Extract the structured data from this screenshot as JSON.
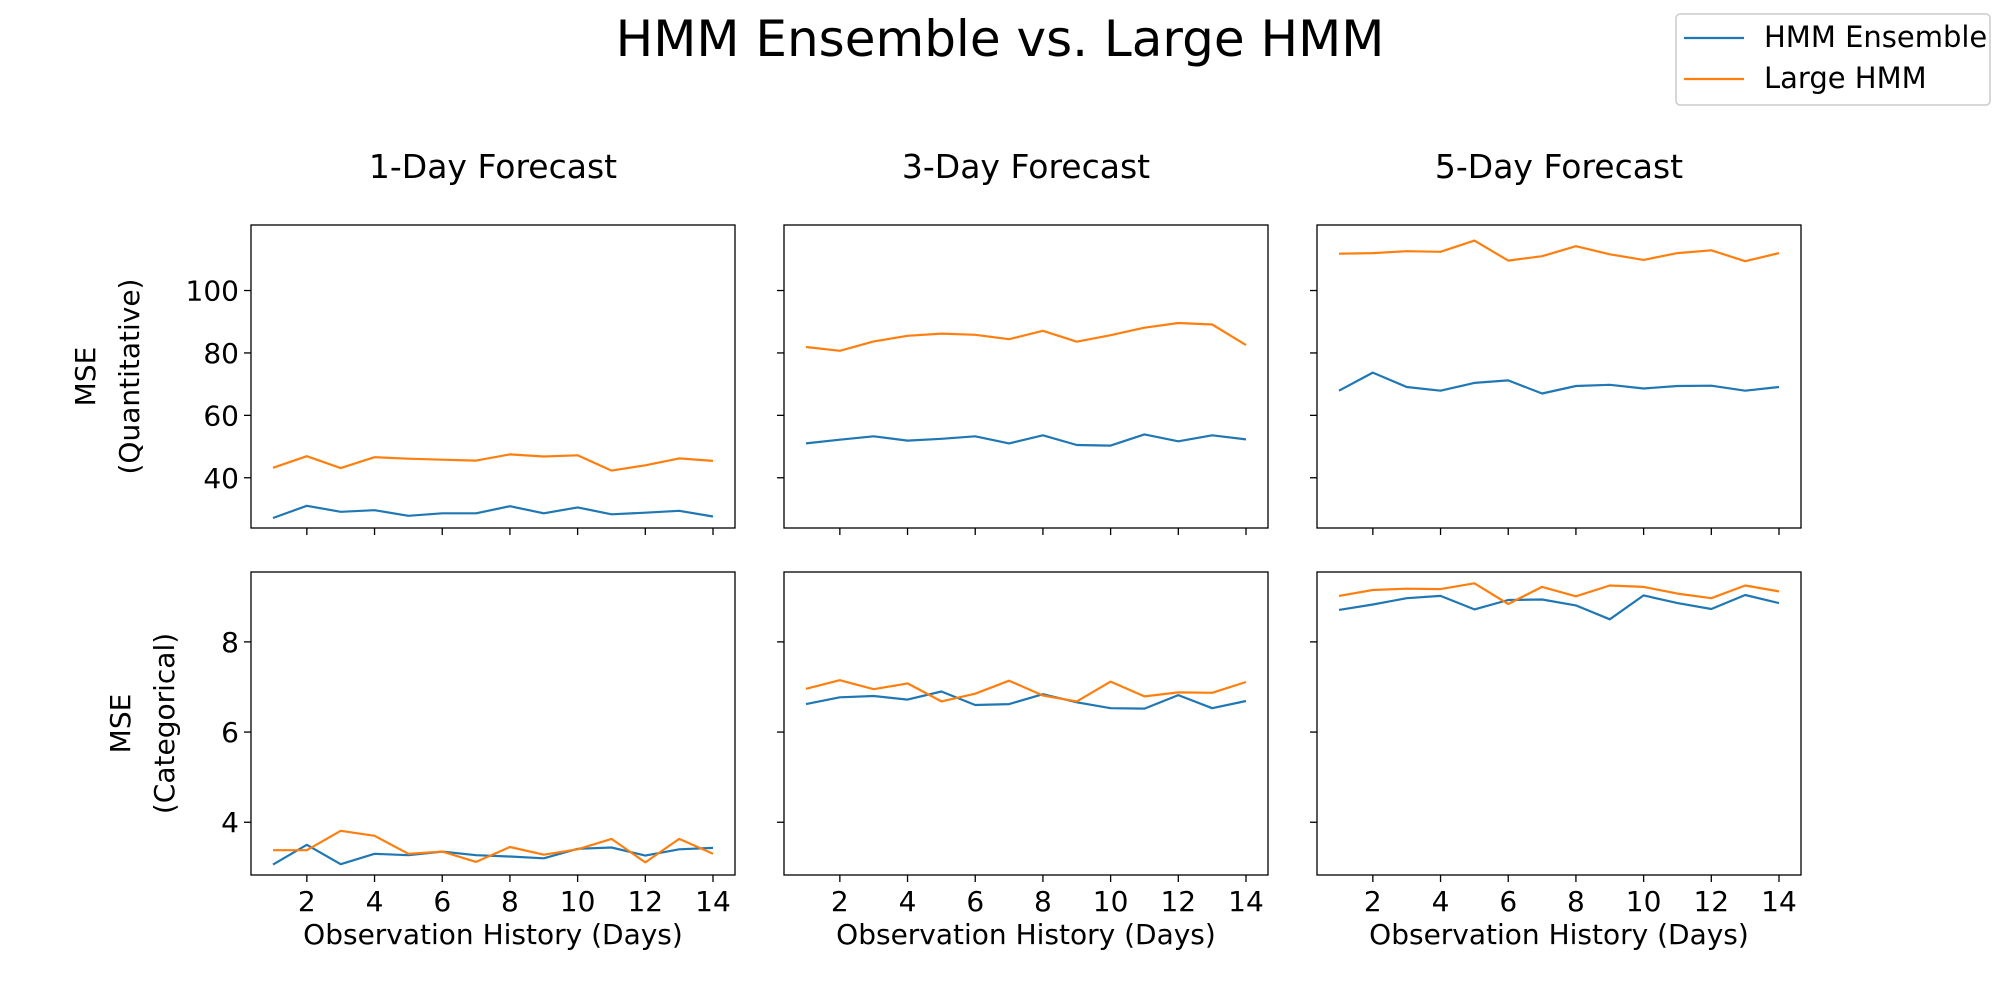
{
  "figure": {
    "title": "HMM Ensemble vs. Large HMM",
    "legend_placement": "top-right",
    "colors": {
      "HMM Ensemble": "#1f77b4",
      "Large HMM": "#ff7f0e"
    }
  },
  "chart_data": [
    {
      "type": "line",
      "panel": "row1-col1",
      "title": "1-Day Forecast",
      "xlabel": "",
      "ylabel": "MSE\n(Quantitative)",
      "x": [
        1,
        2,
        3,
        4,
        5,
        6,
        7,
        8,
        9,
        10,
        11,
        12,
        13,
        14
      ],
      "xticks": [
        2,
        4,
        6,
        8,
        10,
        12,
        14
      ],
      "xlim": [
        0.35,
        14.65
      ],
      "ylim": [
        23.9,
        121.0
      ],
      "yticks": [
        40,
        60,
        80,
        100
      ],
      "series": [
        {
          "name": "HMM Ensemble",
          "values": [
            27.1,
            31.0,
            29.1,
            29.6,
            27.8,
            28.6,
            28.6,
            30.9,
            28.6,
            30.5,
            28.3,
            28.8,
            29.4,
            27.6
          ]
        },
        {
          "name": "Large HMM",
          "values": [
            43.2,
            46.9,
            43.1,
            46.6,
            46.1,
            45.8,
            45.5,
            47.5,
            46.8,
            47.2,
            42.3,
            44.0,
            46.2,
            45.4
          ]
        }
      ]
    },
    {
      "type": "line",
      "panel": "row1-col2",
      "title": "3-Day Forecast",
      "xlabel": "",
      "ylabel": "",
      "x": [
        1,
        2,
        3,
        4,
        5,
        6,
        7,
        8,
        9,
        10,
        11,
        12,
        13,
        14
      ],
      "xticks": [
        2,
        4,
        6,
        8,
        10,
        12,
        14
      ],
      "xlim": [
        0.35,
        14.65
      ],
      "ylim": [
        23.9,
        121.0
      ],
      "yticks": [
        40,
        60,
        80,
        100
      ],
      "series": [
        {
          "name": "HMM Ensemble",
          "values": [
            51.0,
            52.2,
            53.3,
            51.9,
            52.5,
            53.3,
            51.0,
            53.6,
            50.5,
            50.3,
            53.9,
            51.7,
            53.6,
            52.3
          ]
        },
        {
          "name": "Large HMM",
          "values": [
            81.9,
            80.7,
            83.7,
            85.5,
            86.2,
            85.8,
            84.4,
            87.1,
            83.6,
            85.7,
            88.1,
            89.6,
            89.1,
            82.5
          ]
        }
      ]
    },
    {
      "type": "line",
      "panel": "row1-col3",
      "title": "5-Day Forecast",
      "xlabel": "",
      "ylabel": "",
      "x": [
        1,
        2,
        3,
        4,
        5,
        6,
        7,
        8,
        9,
        10,
        11,
        12,
        13,
        14
      ],
      "xticks": [
        2,
        4,
        6,
        8,
        10,
        12,
        14
      ],
      "xlim": [
        0.35,
        14.65
      ],
      "ylim": [
        23.9,
        121.0
      ],
      "yticks": [
        40,
        60,
        80,
        100
      ],
      "series": [
        {
          "name": "HMM Ensemble",
          "values": [
            67.9,
            73.7,
            69.1,
            67.9,
            70.4,
            71.2,
            67.0,
            69.4,
            69.8,
            68.6,
            69.4,
            69.5,
            67.9,
            69.1
          ]
        },
        {
          "name": "Large HMM",
          "values": [
            111.8,
            112.0,
            112.6,
            112.4,
            116.0,
            109.6,
            111.0,
            114.2,
            111.6,
            109.8,
            112.0,
            112.9,
            109.4,
            112.0
          ]
        }
      ]
    },
    {
      "type": "line",
      "panel": "row2-col1",
      "title": "",
      "xlabel": "Observation History (Days)",
      "ylabel": "MSE\n(Categorical)",
      "x": [
        1,
        2,
        3,
        4,
        5,
        6,
        7,
        8,
        9,
        10,
        11,
        12,
        13,
        14
      ],
      "xticks": [
        2,
        4,
        6,
        8,
        10,
        12,
        14
      ],
      "xlim": [
        0.35,
        14.65
      ],
      "ylim": [
        2.83,
        9.55
      ],
      "yticks": [
        4,
        6,
        8
      ],
      "series": [
        {
          "name": "HMM Ensemble",
          "values": [
            3.06,
            3.5,
            3.07,
            3.3,
            3.27,
            3.35,
            3.27,
            3.24,
            3.2,
            3.41,
            3.44,
            3.26,
            3.4,
            3.43
          ]
        },
        {
          "name": "Large HMM",
          "values": [
            3.38,
            3.38,
            3.81,
            3.7,
            3.3,
            3.35,
            3.12,
            3.45,
            3.28,
            3.4,
            3.63,
            3.11,
            3.63,
            3.3
          ]
        }
      ]
    },
    {
      "type": "line",
      "panel": "row2-col2",
      "title": "",
      "xlabel": "Observation History (Days)",
      "ylabel": "",
      "x": [
        1,
        2,
        3,
        4,
        5,
        6,
        7,
        8,
        9,
        10,
        11,
        12,
        13,
        14
      ],
      "xticks": [
        2,
        4,
        6,
        8,
        10,
        12,
        14
      ],
      "xlim": [
        0.35,
        14.65
      ],
      "ylim": [
        2.83,
        9.55
      ],
      "yticks": [
        4,
        6,
        8
      ],
      "series": [
        {
          "name": "HMM Ensemble",
          "values": [
            6.62,
            6.77,
            6.8,
            6.72,
            6.9,
            6.6,
            6.62,
            6.84,
            6.66,
            6.53,
            6.52,
            6.82,
            6.53,
            6.69
          ]
        },
        {
          "name": "Large HMM",
          "values": [
            6.96,
            7.15,
            6.95,
            7.08,
            6.68,
            6.85,
            7.14,
            6.81,
            6.68,
            7.12,
            6.79,
            6.88,
            6.87,
            7.11
          ]
        }
      ]
    },
    {
      "type": "line",
      "panel": "row2-col3",
      "title": "",
      "xlabel": "Observation History (Days)",
      "ylabel": "",
      "x": [
        1,
        2,
        3,
        4,
        5,
        6,
        7,
        8,
        9,
        10,
        11,
        12,
        13,
        14
      ],
      "xticks": [
        2,
        4,
        6,
        8,
        10,
        12,
        14
      ],
      "xlim": [
        0.35,
        14.65
      ],
      "ylim": [
        2.83,
        9.55
      ],
      "yticks": [
        4,
        6,
        8
      ],
      "series": [
        {
          "name": "HMM Ensemble",
          "values": [
            8.71,
            8.83,
            8.97,
            9.02,
            8.72,
            8.93,
            8.94,
            8.81,
            8.5,
            9.03,
            8.86,
            8.73,
            9.04,
            8.86
          ]
        },
        {
          "name": "Large HMM",
          "values": [
            9.02,
            9.15,
            9.18,
            9.17,
            9.3,
            8.84,
            9.22,
            9.01,
            9.25,
            9.22,
            9.07,
            8.97,
            9.25,
            9.12
          ]
        }
      ]
    }
  ]
}
